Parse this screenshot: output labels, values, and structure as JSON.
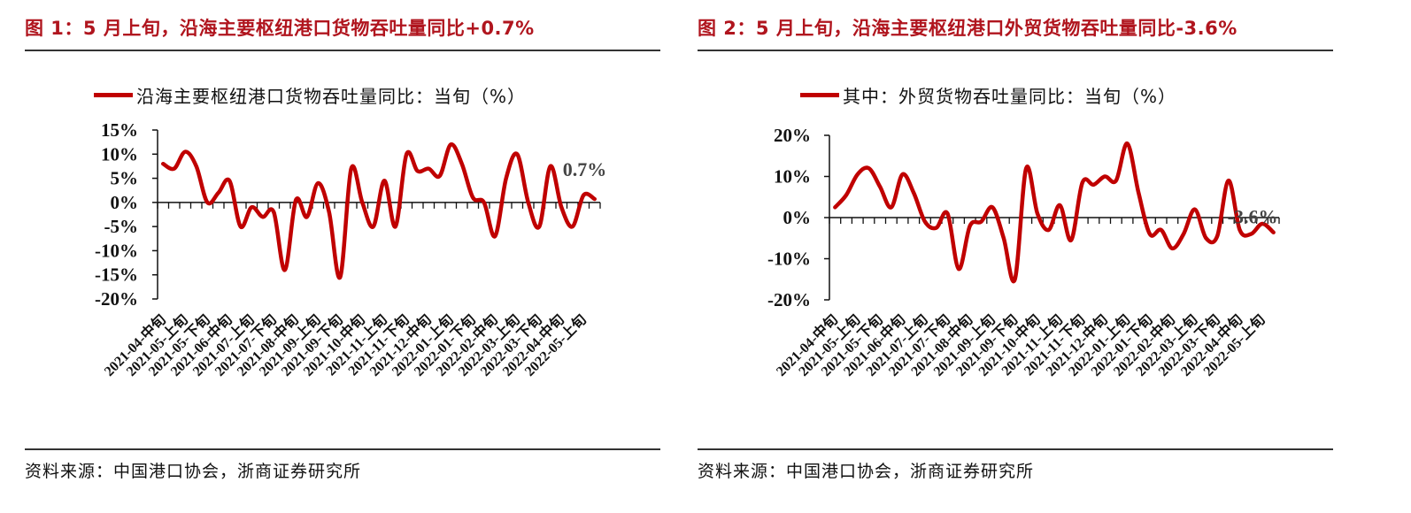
{
  "figures": [
    {
      "title": "图 1：5 月上旬，沿海主要枢纽港口货物吞吐量同比+0.7%",
      "legend": "沿海主要枢纽港口货物吞吐量同比：当旬（%）",
      "source": "资料来源：中国港口协会，浙商证券研究所",
      "annotation": "0.7%",
      "line_color": "#c00000"
    },
    {
      "title": "图 2：5 月上旬，沿海主要枢纽港口外贸货物吞吐量同比-3.6%",
      "legend": "其中：外贸货物吞吐量同比：当旬（%）",
      "source": "资料来源：中国港口协会，浙商证券研究所",
      "annotation": "-3.6%",
      "line_color": "#c00000"
    }
  ],
  "chart_data": [
    {
      "type": "line",
      "title": "图 1：5 月上旬，沿海主要枢纽港口货物吞吐量同比+0.7%",
      "xlabel": "",
      "ylabel": "",
      "ylim": [
        -20,
        15
      ],
      "yticks": [
        "15%",
        "10%",
        "5%",
        "0%",
        "-5%",
        "-10%",
        "-15%",
        "-20%"
      ],
      "ytick_values": [
        15,
        10,
        5,
        0,
        -5,
        -10,
        -15,
        -20
      ],
      "xtick_labels": [
        "2021-04-中旬",
        "2021-05-上旬",
        "2021-05-下旬",
        "2021-06-中旬",
        "2021-07-上旬",
        "2021-07-下旬",
        "2021-08-中旬",
        "2021-09-上旬",
        "2021-09-下旬",
        "2021-10-中旬",
        "2021-11-上旬",
        "2021-11-下旬",
        "2021-12-中旬",
        "2022-01-上旬",
        "2022-01-下旬",
        "2022-02-中旬",
        "2022-03-上旬",
        "2022-03-下旬",
        "2022-04-中旬",
        "2022-05-上旬"
      ],
      "legend": [
        "沿海主要枢纽港口货物吞吐量同比：当旬（%）"
      ],
      "grid": false,
      "annotations": [
        {
          "text": "0.7%",
          "at": "last"
        }
      ],
      "series": [
        {
          "name": "沿海主要枢纽港口货物吞吐量同比：当旬（%）",
          "values": [
            8,
            7,
            10.5,
            7.5,
            0,
            2,
            4.5,
            -5,
            -1,
            -3,
            -2,
            -14,
            0.5,
            -3,
            4,
            -2,
            -15.5,
            7,
            0,
            -5,
            4.5,
            -5,
            10,
            6.5,
            7,
            5.5,
            12,
            8,
            1,
            0,
            -7,
            5,
            10,
            0,
            -5,
            7.5,
            -1,
            -5,
            1.5,
            0.7
          ]
        }
      ]
    },
    {
      "type": "line",
      "title": "图 2：5 月上旬，沿海主要枢纽港口外贸货物吞吐量同比-3.6%",
      "xlabel": "",
      "ylabel": "",
      "ylim": [
        -20,
        20
      ],
      "yticks": [
        "20%",
        "10%",
        "0%",
        "-10%",
        "-20%"
      ],
      "ytick_values": [
        20,
        10,
        0,
        -10,
        -20
      ],
      "xtick_labels": [
        "2021-04-中旬",
        "2021-05-上旬",
        "2021-05-下旬",
        "2021-06-中旬",
        "2021-07-上旬",
        "2021-07-下旬",
        "2021-08-中旬",
        "2021-09-上旬",
        "2021-09-下旬",
        "2021-10-中旬",
        "2021-11-上旬",
        "2021-11-下旬",
        "2021-12-中旬",
        "2022-01-上旬",
        "2022-01-下旬",
        "2022-02-中旬",
        "2022-03-上旬",
        "2022-03-下旬",
        "2022-04-中旬",
        "2022-05-上旬"
      ],
      "legend": [
        "其中：外贸货物吞吐量同比：当旬（%）"
      ],
      "grid": false,
      "annotations": [
        {
          "text": "-3.6%",
          "at": "last"
        }
      ],
      "series": [
        {
          "name": "其中：外贸货物吞吐量同比：当旬（%）",
          "values": [
            2.5,
            5.5,
            10.5,
            12,
            7.5,
            2.5,
            10.5,
            6,
            -1,
            -2.5,
            1,
            -12.5,
            -2,
            -1,
            2.5,
            -5,
            -15,
            12,
            1,
            -3,
            3,
            -5.5,
            8.5,
            8,
            10,
            9,
            18,
            6,
            -4,
            -3,
            -7.5,
            -4,
            2,
            -5,
            -4.5,
            9,
            -3,
            -4,
            -1.5,
            -3.6
          ]
        }
      ]
    }
  ]
}
